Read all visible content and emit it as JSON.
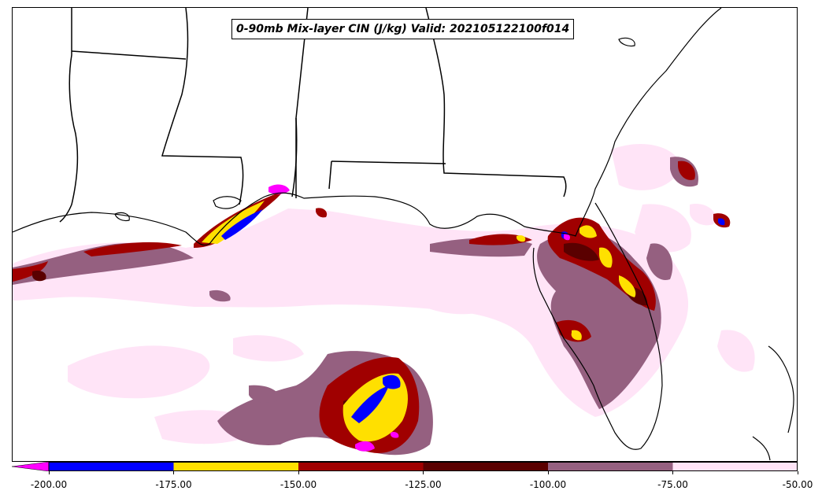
{
  "title": "0-90mb Mix-layer CIN (J/kg) Valid: 202105122100f014",
  "colorbar": {
    "ticks": [
      "-200.00",
      "-175.00",
      "-150.00",
      "-125.00",
      "-100.00",
      "-75.00",
      "-50.00"
    ],
    "colors": [
      "#ff00ff",
      "#0000ff",
      "#ffe000",
      "#a00000",
      "#5a0000",
      "#956080",
      "#ffe4f7"
    ],
    "extend": "min"
  }
}
